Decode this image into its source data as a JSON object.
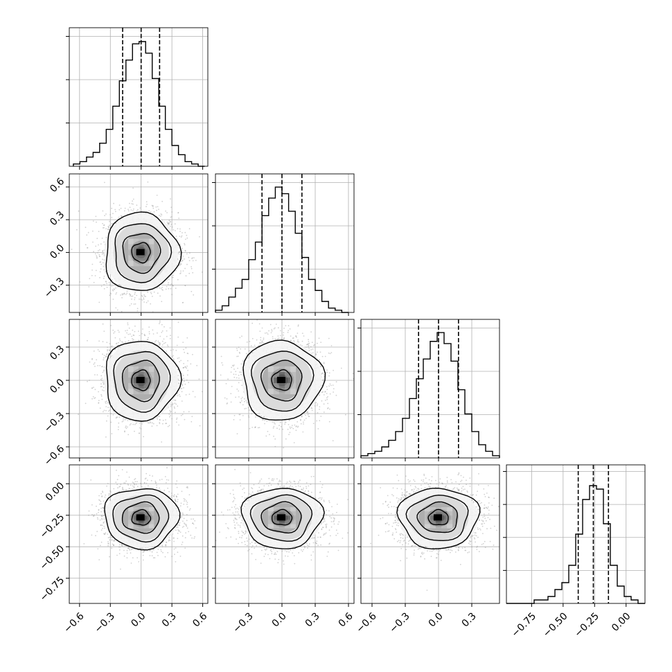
{
  "chart_data": [
    {
      "type": "histogram",
      "variable_index": 0,
      "bin_edges_range": [
        -0.66,
        0.62
      ],
      "counts": [
        1,
        2,
        4,
        6,
        10,
        16,
        26,
        37,
        46,
        53,
        54,
        49,
        38,
        26,
        16,
        9,
        5,
        2,
        1,
        0
      ],
      "quantile_lines": [
        -0.18,
        0.0,
        0.18
      ],
      "xlim": [
        -0.7,
        0.65
      ],
      "ylim": [
        0,
        60
      ],
      "ytick_count": 3
    },
    {
      "type": "histogram",
      "variable_index": 1,
      "bin_edges_range": [
        -0.6,
        0.6
      ],
      "counts": [
        1,
        3,
        7,
        11,
        15,
        24,
        32,
        44,
        52,
        57,
        54,
        46,
        36,
        25,
        15,
        10,
        5,
        2,
        1,
        0
      ],
      "quantile_lines": [
        -0.18,
        0.0,
        0.18
      ],
      "xlim": [
        -0.6,
        0.65
      ],
      "ylim": [
        0,
        63
      ],
      "ytick_count": 3
    },
    {
      "type": "histogram",
      "variable_index": 2,
      "bin_edges_range": [
        -0.7,
        0.55
      ],
      "counts": [
        1,
        2,
        3,
        5,
        8,
        12,
        18,
        27,
        36,
        45,
        53,
        57,
        52,
        44,
        31,
        20,
        12,
        6,
        3,
        1
      ],
      "quantile_lines": [
        -0.18,
        0.0,
        0.18
      ],
      "xlim": [
        -0.7,
        0.55
      ],
      "ylim": [
        0,
        63
      ],
      "ytick_count": 3
    },
    {
      "type": "histogram",
      "variable_index": 3,
      "bin_edges_range": [
        -0.95,
        0.15
      ],
      "counts": [
        0,
        0,
        0,
        0,
        1,
        1,
        2,
        4,
        6,
        11,
        20,
        30,
        34,
        33,
        23,
        11,
        5,
        2,
        1,
        0
      ],
      "quantile_lines": [
        -0.38,
        -0.26,
        -0.14
      ],
      "xlim": [
        -0.95,
        0.15
      ],
      "ylim": [
        0,
        40
      ],
      "ytick_count": 4
    },
    {
      "type": "scatter",
      "pair": [
        0,
        1
      ],
      "mean": [
        0.0,
        0.0
      ],
      "std": [
        0.18,
        0.18
      ],
      "xlim": [
        -0.7,
        0.65
      ],
      "ylim": [
        -0.55,
        0.72
      ],
      "contour_levels": 4
    },
    {
      "type": "scatter",
      "pair": [
        0,
        2
      ],
      "mean": [
        0.0,
        0.0
      ],
      "std": [
        0.18,
        0.18
      ],
      "xlim": [
        -0.7,
        0.65
      ],
      "ylim": [
        -0.7,
        0.55
      ],
      "contour_levels": 4
    },
    {
      "type": "scatter",
      "pair": [
        1,
        2
      ],
      "mean": [
        0.0,
        0.0
      ],
      "std": [
        0.18,
        0.18
      ],
      "xlim": [
        -0.6,
        0.65
      ],
      "ylim": [
        -0.7,
        0.55
      ],
      "contour_levels": 4
    },
    {
      "type": "scatter",
      "pair": [
        0,
        3
      ],
      "mean": [
        0.0,
        -0.27
      ],
      "std": [
        0.18,
        0.12
      ],
      "xlim": [
        -0.7,
        0.65
      ],
      "ylim": [
        -0.95,
        0.15
      ],
      "contour_levels": 4
    },
    {
      "type": "scatter",
      "pair": [
        1,
        3
      ],
      "mean": [
        0.0,
        -0.27
      ],
      "std": [
        0.18,
        0.12
      ],
      "xlim": [
        -0.6,
        0.65
      ],
      "ylim": [
        -0.95,
        0.15
      ],
      "contour_levels": 4
    },
    {
      "type": "scatter",
      "pair": [
        2,
        3
      ],
      "mean": [
        0.0,
        -0.27
      ],
      "std": [
        0.18,
        0.12
      ],
      "xlim": [
        -0.7,
        0.55
      ],
      "ylim": [
        -0.95,
        0.15
      ],
      "contour_levels": 4
    }
  ],
  "axes": {
    "x_ticks": [
      {
        "values": [
          -0.6,
          -0.3,
          0.0,
          0.3,
          0.6
        ],
        "labels": [
          "−0.6",
          "−0.3",
          "0.0",
          "0.3",
          "0.6"
        ]
      },
      {
        "values": [
          -0.3,
          0.0,
          0.3,
          0.6
        ],
        "labels": [
          "−0.3",
          "0.0",
          "0.3",
          "0.6"
        ]
      },
      {
        "values": [
          -0.6,
          -0.3,
          0.0,
          0.3
        ],
        "labels": [
          "−0.6",
          "−0.3",
          "0.0",
          "0.3"
        ]
      },
      {
        "values": [
          -0.75,
          -0.5,
          -0.25,
          0.0
        ],
        "labels": [
          "−0.75",
          "−0.50",
          "−0.25",
          "0.00"
        ]
      }
    ],
    "y_ticks": [
      null,
      {
        "values": [
          -0.3,
          0.0,
          0.3,
          0.6
        ],
        "labels": [
          "−0.3",
          "0.0",
          "0.3",
          "0.6"
        ]
      },
      {
        "values": [
          -0.6,
          -0.3,
          0.0,
          0.3
        ],
        "labels": [
          "−0.6",
          "−0.3",
          "0.0",
          "0.3"
        ]
      },
      {
        "values": [
          -0.75,
          -0.5,
          -0.25,
          0.0
        ],
        "labels": [
          "−0.75",
          "−0.50",
          "−0.25",
          "0.00"
        ]
      }
    ]
  },
  "colors": {
    "line": "#000000",
    "grid": "#b0b0b0",
    "scatter": "#9a9a9a",
    "background": "#ffffff"
  }
}
